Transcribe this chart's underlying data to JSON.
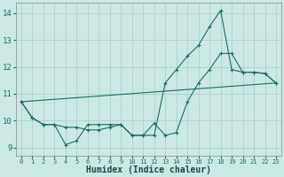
{
  "xlabel": "Humidex (Indice chaleur)",
  "ylabel": "",
  "bg_color": "#cce8e4",
  "grid_color": "#b0d4cf",
  "line_color": "#1a6e64",
  "xlim": [
    -0.5,
    23.5
  ],
  "ylim": [
    8.7,
    14.4
  ],
  "yticks": [
    9,
    10,
    11,
    12,
    13,
    14
  ],
  "xticks": [
    0,
    1,
    2,
    3,
    4,
    5,
    6,
    7,
    8,
    9,
    10,
    11,
    12,
    13,
    14,
    15,
    16,
    17,
    18,
    19,
    20,
    21,
    22,
    23
  ],
  "line1_x": [
    0,
    1,
    2,
    3,
    4,
    5,
    6,
    7,
    8,
    9,
    10,
    11,
    12,
    13,
    14,
    15,
    16,
    17,
    18,
    19,
    20,
    21,
    22,
    23
  ],
  "line1_y": [
    10.7,
    10.1,
    9.85,
    9.85,
    9.75,
    9.75,
    9.65,
    9.65,
    9.75,
    9.85,
    9.45,
    9.45,
    9.9,
    9.45,
    9.55,
    10.7,
    11.4,
    11.9,
    12.5,
    12.5,
    11.8,
    11.8,
    11.75,
    11.4
  ],
  "line2_x": [
    0,
    1,
    2,
    3,
    4,
    5,
    6,
    7,
    8,
    9,
    10,
    11,
    12,
    13,
    14,
    15,
    16,
    17,
    18,
    19,
    20,
    21,
    22,
    23
  ],
  "line2_y": [
    10.7,
    10.1,
    9.85,
    9.85,
    9.1,
    9.25,
    9.85,
    9.85,
    9.85,
    9.85,
    9.45,
    9.45,
    9.45,
    11.4,
    11.9,
    12.4,
    12.8,
    13.5,
    14.1,
    11.9,
    11.8,
    11.8,
    11.75,
    11.4
  ],
  "line3_x": [
    0,
    23
  ],
  "line3_y": [
    10.7,
    11.4
  ]
}
